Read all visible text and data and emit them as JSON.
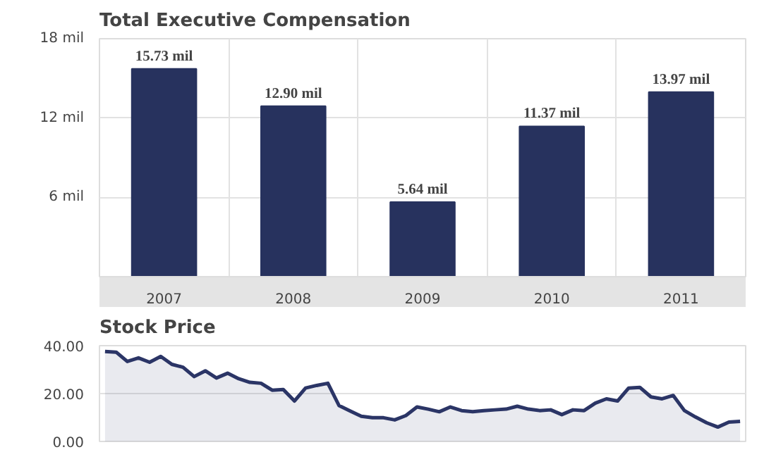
{
  "chart_data": [
    {
      "type": "bar",
      "title": "Total Executive Compensation",
      "categories": [
        "2007",
        "2008",
        "2009",
        "2010",
        "2011"
      ],
      "values": [
        15.73,
        12.9,
        5.64,
        11.37,
        13.97
      ],
      "color": "#27325e",
      "value_labels": [
        "15.73 mil",
        "12.90 mil",
        "5.64 mil",
        "11.37 mil",
        "13.97 mil"
      ],
      "ylim": [
        0,
        18
      ],
      "yticks": [
        {
          "value": 6,
          "label": "6 mil"
        },
        {
          "value": 12,
          "label": "12 mil"
        },
        {
          "value": 18,
          "label": "18 mil"
        }
      ],
      "grid": true
    },
    {
      "type": "area",
      "title": "Stock Price",
      "categories": [
        null,
        null,
        null,
        null,
        null,
        null,
        null,
        null,
        null,
        null,
        null,
        null,
        null,
        null,
        null,
        null,
        null,
        null,
        null,
        null,
        null,
        null,
        null,
        null,
        null,
        null,
        null,
        null,
        null,
        null,
        null,
        null,
        null,
        null,
        null,
        null,
        null,
        null,
        null,
        null,
        null,
        null,
        null,
        null,
        null,
        null,
        null,
        null,
        null,
        null,
        null,
        null,
        null,
        null,
        null,
        null,
        null,
        null
      ],
      "series": [
        {
          "color": "#2b3566",
          "values": [
            37.6,
            37.3,
            33.4,
            34.9,
            33.1,
            35.5,
            32.2,
            31.0,
            27.1,
            29.5,
            26.5,
            28.5,
            26.2,
            24.7,
            24.3,
            21.4,
            21.7,
            16.9,
            22.3,
            23.4,
            24.3,
            15.0,
            12.7,
            10.5,
            9.9,
            9.9,
            9.0,
            10.8,
            14.4,
            13.5,
            12.4,
            14.4,
            12.9,
            12.4,
            12.9,
            13.2,
            13.5,
            14.7,
            13.5,
            12.9,
            13.2,
            11.2,
            13.2,
            12.9,
            16.0,
            17.8,
            16.9,
            22.3,
            22.6,
            18.6,
            17.8,
            19.2,
            12.9,
            10.2,
            7.8,
            6.0,
            8.1,
            8.4
          ]
        }
      ],
      "ylim": [
        0,
        40
      ],
      "yticks": [
        {
          "value": 0,
          "label": "0.00"
        },
        {
          "value": 20,
          "label": "20.00"
        },
        {
          "value": 40,
          "label": "40.00"
        }
      ],
      "grid": "y",
      "tick_labels": "y"
    }
  ]
}
